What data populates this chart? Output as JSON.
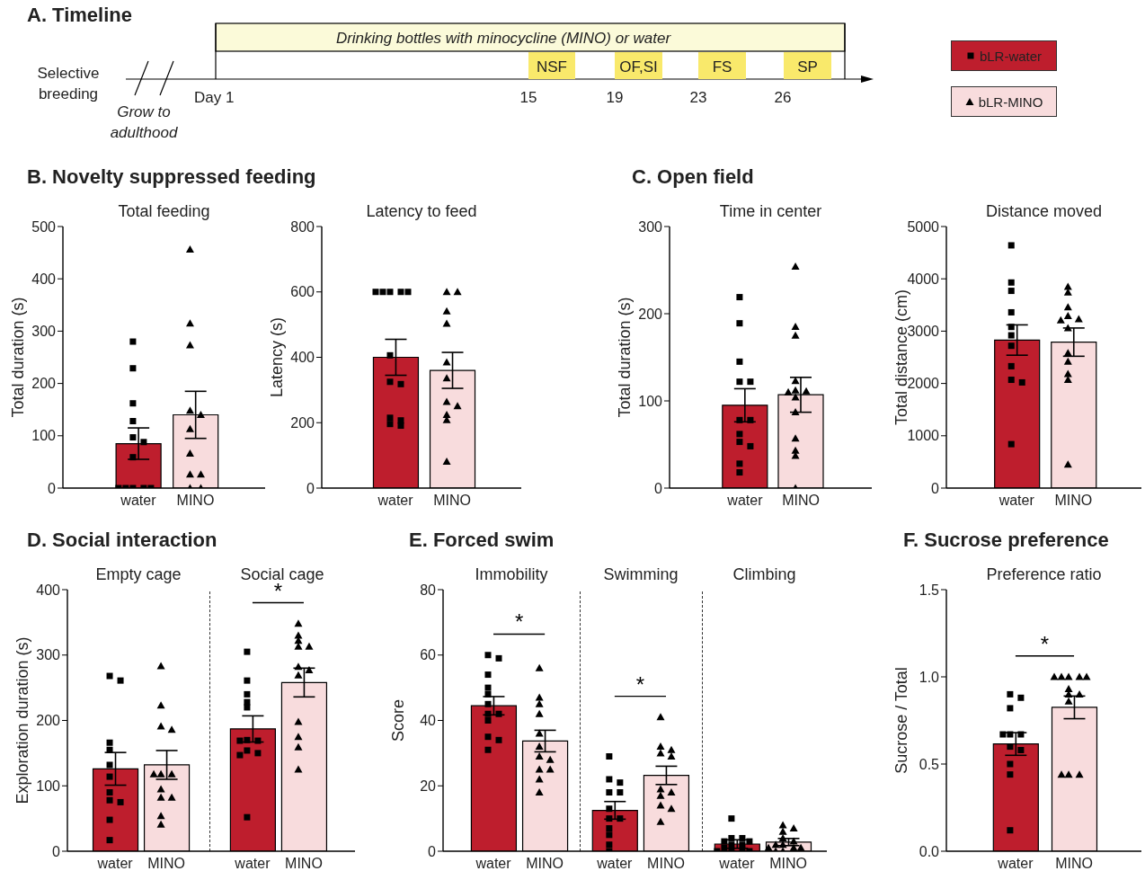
{
  "chart_data": [
    {
      "type": "other",
      "title": "A. Timeline",
      "annotations": [
        "Drinking bottles with minocycline (MINO) or water",
        "Selective breeding",
        "Grow to adulthood",
        "Day 1",
        "15",
        "19",
        "23",
        "26",
        "NSF",
        "OF,SI",
        "FS",
        "SP"
      ]
    },
    {
      "type": "bar",
      "title": "B. Novelty suppressed feeding",
      "subtitle": "Total feeding",
      "ylabel": "Total duration (s)",
      "categories": [
        "water",
        "MINO"
      ],
      "ylim": [
        0,
        500
      ],
      "yticks": [
        0,
        100,
        200,
        300,
        400,
        500
      ],
      "legend": "top right",
      "series": [
        {
          "type": "bar",
          "values": [
            85,
            140
          ],
          "colors": [
            "#be1e2d",
            "#f8dcdd"
          ],
          "errors": [
            30,
            45
          ]
        },
        {
          "type": "scatter",
          "name": "bLR-water",
          "color": "#000000",
          "marker": "square",
          "x": [
            "water",
            "water",
            "water",
            "water",
            "water",
            "water",
            "water",
            "water",
            "water",
            "water",
            "water",
            "water"
          ],
          "values": [
            280,
            229,
            162,
            128,
            97,
            88,
            59,
            0,
            0,
            0,
            0,
            0
          ]
        },
        {
          "type": "scatter",
          "name": "bLR-MINO",
          "color": "#000000",
          "marker": "triangle",
          "x": [
            "MINO",
            "MINO",
            "MINO",
            "MINO",
            "MINO",
            "MINO",
            "MINO",
            "MINO",
            "MINO",
            "MINO",
            "MINO"
          ],
          "values": [
            456,
            315,
            273,
            148,
            140,
            113,
            66,
            26,
            26,
            0,
            0
          ]
        }
      ]
    },
    {
      "type": "bar",
      "subtitle": "Latency to feed",
      "ylabel": "Latency (s)",
      "categories": [
        "water",
        "MINO"
      ],
      "ylim": [
        0,
        800
      ],
      "yticks": [
        0,
        200,
        400,
        600,
        800
      ],
      "series": [
        {
          "type": "bar",
          "values": [
            400,
            360
          ],
          "colors": [
            "#be1e2d",
            "#f8dcdd"
          ],
          "errors": [
            55,
            55
          ]
        },
        {
          "type": "scatter",
          "color": "#000000",
          "marker": "square",
          "x": [
            "water",
            "water",
            "water",
            "water",
            "water",
            "water",
            "water",
            "water",
            "water",
            "water",
            "water",
            "water"
          ],
          "values": [
            600,
            600,
            600,
            600,
            600,
            406,
            325,
            318,
            215,
            207,
            196,
            191
          ]
        },
        {
          "type": "scatter",
          "color": "#000000",
          "marker": "triangle",
          "x": [
            "MINO",
            "MINO",
            "MINO",
            "MINO",
            "MINO",
            "MINO",
            "MINO",
            "MINO",
            "MINO",
            "MINO",
            "MINO"
          ],
          "values": [
            600,
            600,
            541,
            503,
            385,
            336,
            264,
            251,
            224,
            208,
            81
          ]
        }
      ]
    },
    {
      "type": "bar",
      "title": "C. Open field",
      "subtitle": "Time in center",
      "ylabel": "Total duration (s)",
      "categories": [
        "water",
        "MINO"
      ],
      "ylim": [
        0,
        300
      ],
      "yticks": [
        0,
        100,
        200,
        300
      ],
      "series": [
        {
          "type": "bar",
          "values": [
            95,
            107
          ],
          "colors": [
            "#be1e2d",
            "#f8dcdd"
          ],
          "errors": [
            19,
            20
          ]
        },
        {
          "type": "scatter",
          "color": "#000000",
          "marker": "square",
          "x": [
            "water",
            "water",
            "water",
            "water",
            "water",
            "water",
            "water",
            "water",
            "water",
            "water",
            "water",
            "water"
          ],
          "values": [
            219,
            189,
            145,
            122,
            122,
            78,
            78,
            62,
            53,
            48,
            28,
            18
          ]
        },
        {
          "type": "scatter",
          "color": "#000000",
          "marker": "triangle",
          "x": [
            "MINO",
            "MINO",
            "MINO",
            "MINO",
            "MINO",
            "MINO",
            "MINO",
            "MINO",
            "MINO",
            "MINO",
            "MINO",
            "MINO",
            "MINO"
          ],
          "values": [
            254,
            185,
            175,
            123,
            112,
            111,
            110,
            104,
            87,
            57,
            43,
            37,
            0
          ]
        }
      ]
    },
    {
      "type": "bar",
      "subtitle": "Distance moved",
      "ylabel": "Total distance (cm)",
      "categories": [
        "water",
        "MINO"
      ],
      "ylim": [
        0,
        5000
      ],
      "yticks": [
        0,
        1000,
        2000,
        3000,
        4000,
        5000
      ],
      "series": [
        {
          "type": "bar",
          "values": [
            2830,
            2790
          ],
          "colors": [
            "#be1e2d",
            "#f8dcdd"
          ],
          "errors": [
            290,
            270
          ]
        },
        {
          "type": "scatter",
          "color": "#000000",
          "marker": "square",
          "x": [
            "water",
            "water",
            "water",
            "water",
            "water",
            "water",
            "water",
            "water",
            "water",
            "water",
            "water"
          ],
          "values": [
            4640,
            3930,
            3770,
            3360,
            3080,
            2920,
            2720,
            2330,
            2070,
            2020,
            840
          ]
        },
        {
          "type": "scatter",
          "color": "#000000",
          "marker": "triangle",
          "x": [
            "MINO",
            "MINO",
            "MINO",
            "MINO",
            "MINO",
            "MINO",
            "MINO",
            "MINO",
            "MINO",
            "MINO",
            "MINO",
            "MINO"
          ],
          "values": [
            3850,
            3740,
            3460,
            3290,
            3230,
            3210,
            3060,
            2580,
            2420,
            2180,
            2070,
            450
          ]
        }
      ]
    },
    {
      "type": "bar",
      "title": "D. Social interaction",
      "subtitle": "Empty cage",
      "ylabel": "Exploration duration (s)",
      "categories": [
        "water",
        "MINO"
      ],
      "ylim": [
        0,
        400
      ],
      "yticks": [
        0,
        100,
        200,
        300,
        400
      ],
      "series": [
        {
          "type": "bar",
          "values": [
            126,
            132
          ],
          "colors": [
            "#be1e2d",
            "#f8dcdd"
          ],
          "errors": [
            25,
            22
          ]
        },
        {
          "type": "scatter",
          "color": "#000000",
          "marker": "square",
          "x": [
            "water",
            "water",
            "water",
            "water",
            "water",
            "water",
            "water",
            "water",
            "water",
            "water",
            "water"
          ],
          "values": [
            268,
            261,
            166,
            155,
            132,
            114,
            90,
            78,
            75,
            48,
            17
          ]
        },
        {
          "type": "scatter",
          "color": "#000000",
          "marker": "triangle",
          "x": [
            "MINO",
            "MINO",
            "MINO",
            "MINO",
            "MINO",
            "MINO",
            "MINO",
            "MINO",
            "MINO",
            "MINO",
            "MINO",
            "MINO"
          ],
          "values": [
            283,
            223,
            191,
            186,
            118,
            118,
            118,
            95,
            82,
            82,
            54,
            41
          ]
        }
      ]
    },
    {
      "type": "bar",
      "subtitle": "Social cage",
      "categories": [
        "water",
        "MINO"
      ],
      "ylim": [
        0,
        400
      ],
      "yticks": [
        0,
        100,
        200,
        300,
        400
      ],
      "tick_labels": "x",
      "annotations": [
        "*"
      ],
      "series": [
        {
          "type": "bar",
          "values": [
            187,
            258
          ],
          "colors": [
            "#be1e2d",
            "#f8dcdd"
          ],
          "errors": [
            20,
            22
          ]
        },
        {
          "type": "scatter",
          "color": "#000000",
          "marker": "square",
          "x": [
            "water",
            "water",
            "water",
            "water",
            "water",
            "water",
            "water",
            "water",
            "water",
            "water",
            "water",
            "water"
          ],
          "values": [
            305,
            261,
            240,
            228,
            220,
            170,
            169,
            169,
            154,
            150,
            147,
            52
          ]
        },
        {
          "type": "scatter",
          "color": "#000000",
          "marker": "triangle",
          "x": [
            "MINO",
            "MINO",
            "MINO",
            "MINO",
            "MINO",
            "MINO",
            "MINO",
            "MINO",
            "MINO",
            "MINO",
            "MINO",
            "MINO"
          ],
          "values": [
            348,
            330,
            322,
            313,
            313,
            282,
            277,
            269,
            198,
            175,
            159,
            125
          ]
        }
      ]
    },
    {
      "type": "bar",
      "title": "E. Forced swim",
      "subtitle": "Immobility",
      "ylabel": "Score",
      "categories": [
        "water",
        "MINO"
      ],
      "ylim": [
        0,
        80
      ],
      "yticks": [
        0,
        20,
        40,
        60,
        80
      ],
      "annotations": [
        "*"
      ],
      "series": [
        {
          "type": "bar",
          "values": [
            44.5,
            33.7
          ],
          "colors": [
            "#be1e2d",
            "#f8dcdd"
          ],
          "errors": [
            2.8,
            3.3
          ]
        },
        {
          "type": "scatter",
          "color": "#000000",
          "marker": "square",
          "x": [
            "water",
            "water",
            "water",
            "water",
            "water",
            "water",
            "water",
            "water",
            "water",
            "water",
            "water",
            "water"
          ],
          "values": [
            60,
            59,
            54,
            50,
            48,
            45,
            42,
            42,
            40,
            35,
            34,
            31
          ]
        },
        {
          "type": "scatter",
          "color": "#000000",
          "marker": "triangle",
          "x": [
            "MINO",
            "MINO",
            "MINO",
            "MINO",
            "MINO",
            "MINO",
            "MINO",
            "MINO",
            "MINO",
            "MINO",
            "MINO",
            "MINO"
          ],
          "values": [
            56,
            47,
            45,
            42,
            36,
            32,
            29,
            28,
            25,
            25,
            22,
            18
          ]
        }
      ]
    },
    {
      "type": "bar",
      "subtitle": "Swimming",
      "categories": [
        "water",
        "MINO"
      ],
      "ylim": [
        0,
        80
      ],
      "yticks": [
        0,
        20,
        40,
        60,
        80
      ],
      "tick_labels": "x",
      "annotations": [
        "*"
      ],
      "series": [
        {
          "type": "bar",
          "values": [
            12.5,
            23.2
          ],
          "colors": [
            "#be1e2d",
            "#f8dcdd"
          ],
          "errors": [
            2.7,
            2.8
          ]
        },
        {
          "type": "scatter",
          "color": "#000000",
          "marker": "square",
          "x": [
            "water",
            "water",
            "water",
            "water",
            "water",
            "water",
            "water",
            "water",
            "water",
            "water",
            "water",
            "water"
          ],
          "values": [
            29,
            22,
            21,
            18,
            18,
            13,
            10,
            10,
            7,
            5,
            2,
            0
          ]
        },
        {
          "type": "scatter",
          "color": "#000000",
          "marker": "triangle",
          "x": [
            "MINO",
            "MINO",
            "MINO",
            "MINO",
            "MINO",
            "MINO",
            "MINO",
            "MINO",
            "MINO",
            "MINO",
            "MINO"
          ],
          "values": [
            41,
            32,
            31,
            30,
            29,
            19,
            18,
            17,
            14,
            13,
            9
          ]
        }
      ]
    },
    {
      "type": "bar",
      "subtitle": "Climbing",
      "categories": [
        "water",
        "MINO"
      ],
      "ylim": [
        0,
        80
      ],
      "yticks": [
        0,
        20,
        40,
        60,
        80
      ],
      "tick_labels": "x",
      "series": [
        {
          "type": "bar",
          "values": [
            2.2,
            2.8
          ],
          "colors": [
            "#be1e2d",
            "#f8dcdd"
          ],
          "errors": [
            1.3,
            1.1
          ]
        },
        {
          "type": "scatter",
          "color": "#000000",
          "marker": "square",
          "x": [
            "water",
            "water",
            "water",
            "water",
            "water",
            "water",
            "water",
            "water",
            "water",
            "water",
            "water",
            "water"
          ],
          "values": [
            10,
            4,
            4,
            3,
            3,
            2,
            2,
            1,
            0,
            0,
            0,
            0
          ]
        },
        {
          "type": "scatter",
          "color": "#000000",
          "marker": "triangle",
          "x": [
            "MINO",
            "MINO",
            "MINO",
            "MINO",
            "MINO",
            "MINO",
            "MINO",
            "MINO",
            "MINO",
            "MINO",
            "MINO",
            "MINO"
          ],
          "values": [
            8,
            7,
            6,
            4,
            3,
            2,
            2,
            1,
            1,
            1,
            0,
            0
          ]
        }
      ]
    },
    {
      "type": "bar",
      "title": "F. Sucrose preference",
      "subtitle": "Preference ratio",
      "ylabel": "Sucrose / Total",
      "categories": [
        "water",
        "MINO"
      ],
      "ylim": [
        0,
        1.5
      ],
      "yticks": [
        {
          "value": 0,
          "label": "0.0"
        },
        {
          "value": 0.5,
          "label": "0.5"
        },
        {
          "value": 1,
          "label": "1.0"
        },
        {
          "value": 1.5,
          "label": "1.5"
        }
      ],
      "annotations": [
        "*"
      ],
      "series": [
        {
          "type": "bar",
          "values": [
            0.615,
            0.825
          ],
          "colors": [
            "#be1e2d",
            "#f8dcdd"
          ],
          "errors": [
            0.065,
            0.065
          ]
        },
        {
          "type": "scatter",
          "color": "#000000",
          "marker": "square",
          "x": [
            "water",
            "water",
            "water",
            "water",
            "water",
            "water",
            "water",
            "water",
            "water",
            "water",
            "water"
          ],
          "values": [
            0.9,
            0.88,
            0.82,
            0.67,
            0.67,
            0.67,
            0.6,
            0.58,
            0.5,
            0.44,
            0.12
          ]
        },
        {
          "type": "scatter",
          "color": "#000000",
          "marker": "triangle",
          "x": [
            "MINO",
            "MINO",
            "MINO",
            "MINO",
            "MINO",
            "MINO",
            "MINO",
            "MINO",
            "MINO",
            "MINO",
            "MINO",
            "MINO"
          ],
          "values": [
            1,
            1,
            1,
            1,
            1,
            0.93,
            0.9,
            0.9,
            0.86,
            0.44,
            0.44,
            0.44
          ]
        }
      ]
    }
  ]
}
